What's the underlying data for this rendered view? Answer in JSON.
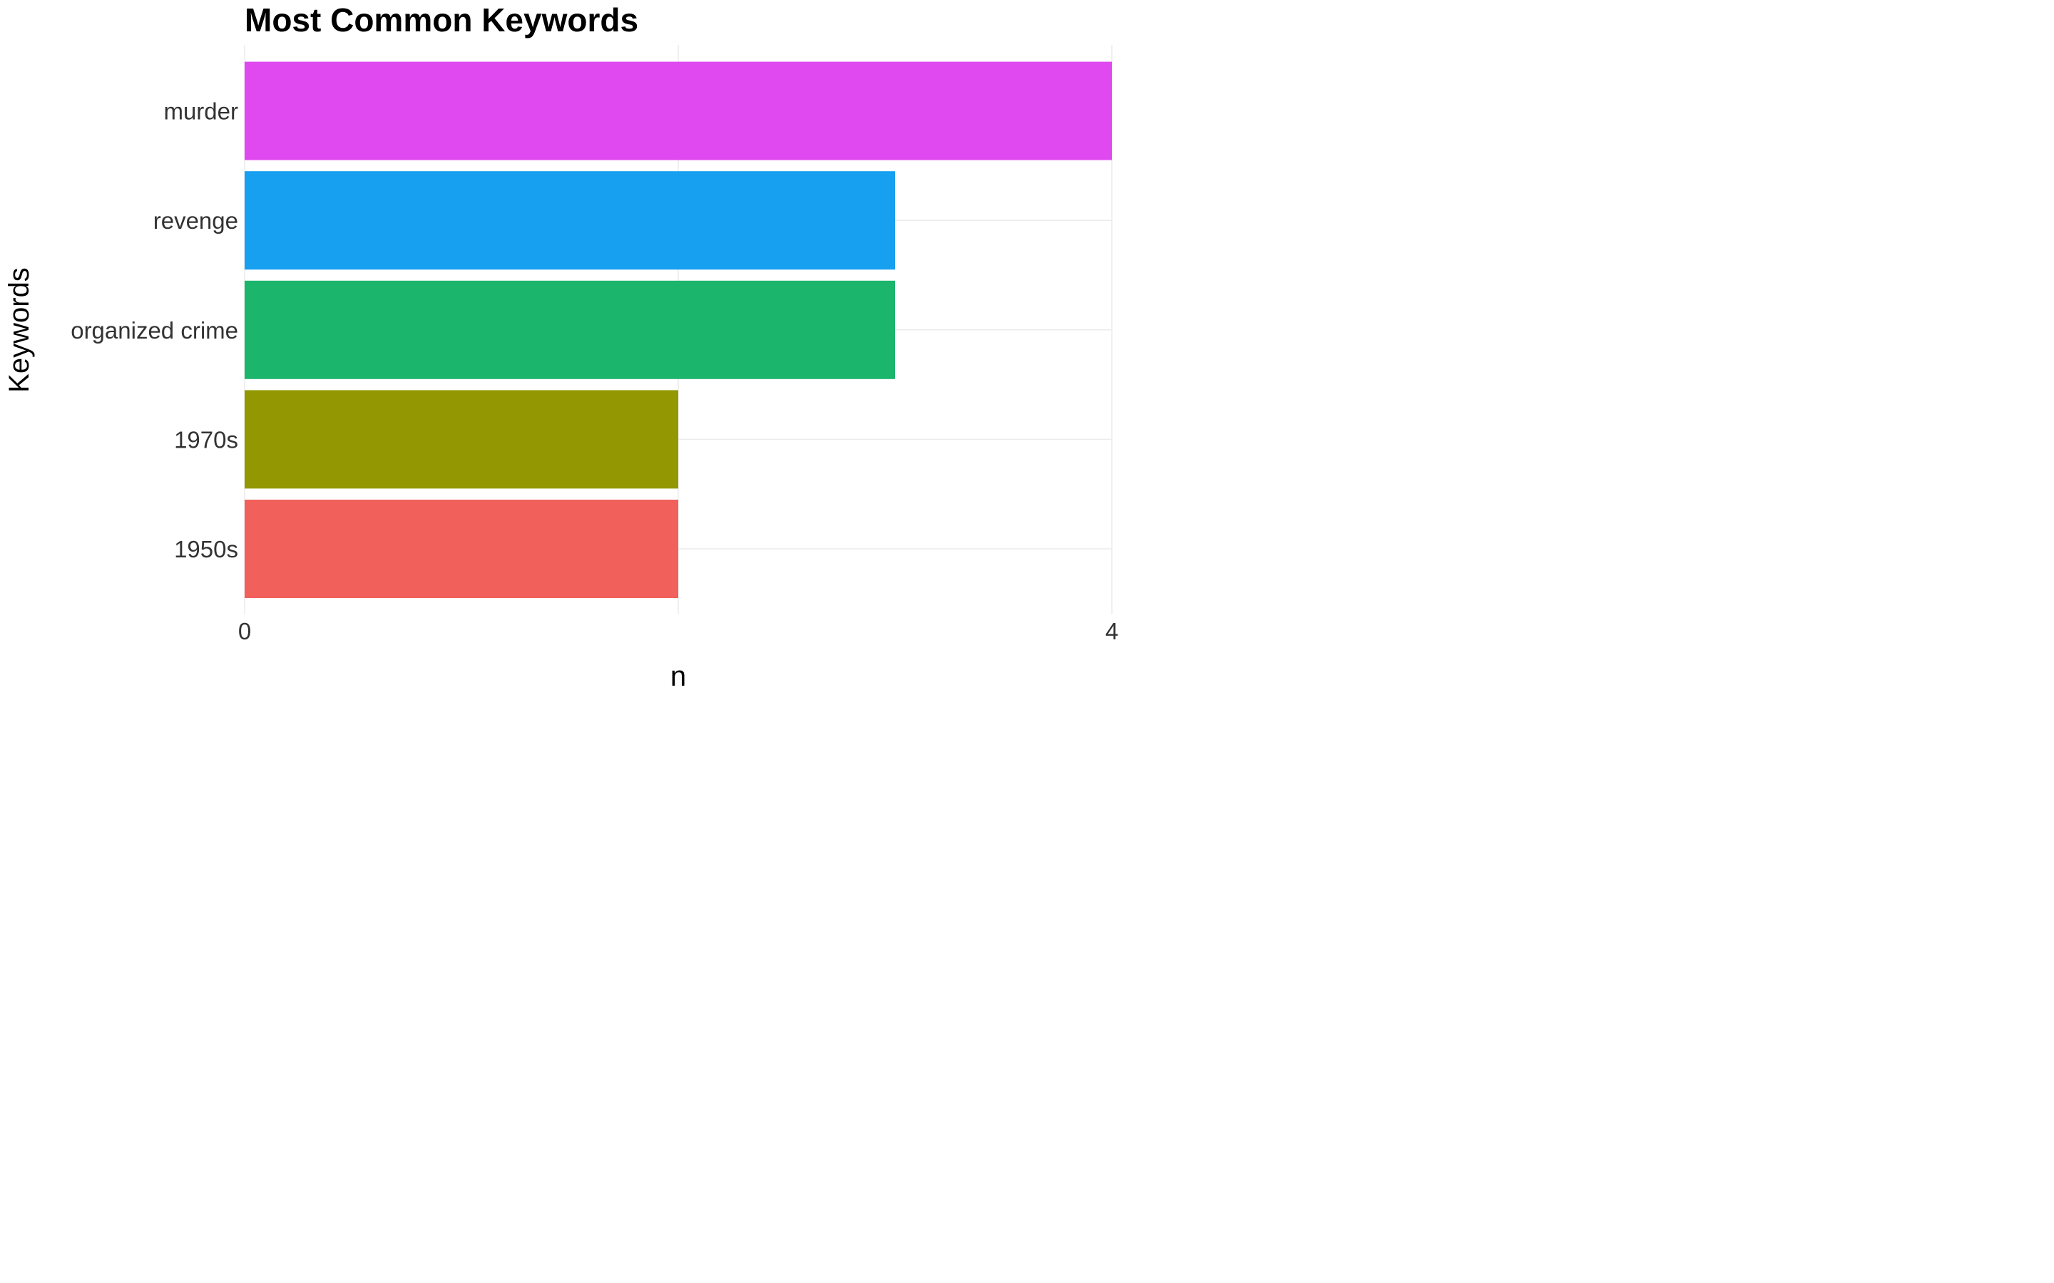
{
  "chart_data": {
    "type": "bar",
    "orientation": "horizontal",
    "title": "Most Common Keywords",
    "xlabel": "n",
    "ylabel": "Keywords",
    "categories": [
      "1950s",
      "1970s",
      "organized crime",
      "revenge",
      "murder"
    ],
    "values": [
      2,
      2,
      3,
      3,
      4
    ],
    "colors": [
      "#F2605C",
      "#939802",
      "#1BB56B",
      "#179FF0",
      "#E048F0"
    ],
    "xlim": [
      0,
      4
    ],
    "x_ticks": [
      0,
      4
    ],
    "x_tick_labels": [
      "0",
      "4"
    ],
    "grid": true,
    "legend": "none"
  }
}
